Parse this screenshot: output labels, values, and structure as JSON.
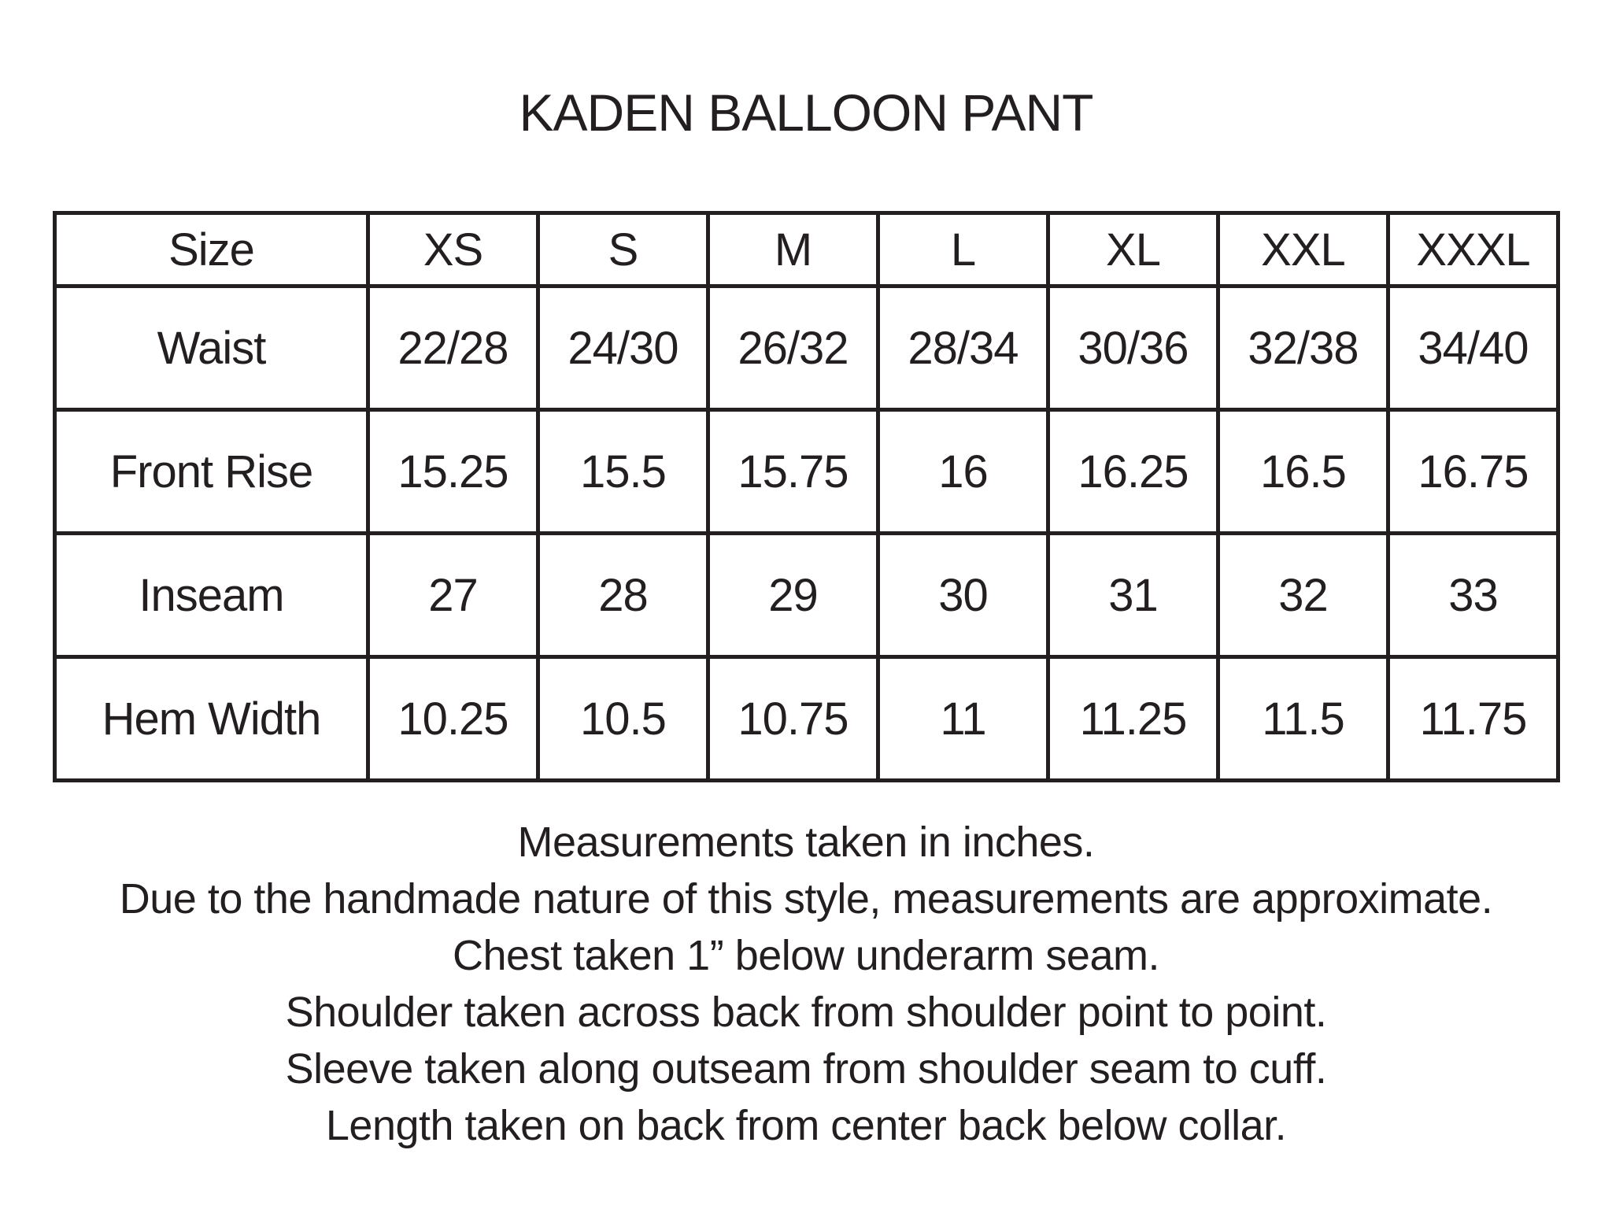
{
  "title": "KADEN BALLOON PANT",
  "table": {
    "header": [
      "Size",
      "XS",
      "S",
      "M",
      "L",
      "XL",
      "XXL",
      "XXXL"
    ],
    "rows": [
      [
        "Waist",
        "22/28",
        "24/30",
        "26/32",
        "28/34",
        "30/36",
        "32/38",
        "34/40"
      ],
      [
        "Front Rise",
        "15.25",
        "15.5",
        "15.75",
        "16",
        "16.25",
        "16.5",
        "16.75"
      ],
      [
        "Inseam",
        "27",
        "28",
        "29",
        "30",
        "31",
        "32",
        "33"
      ],
      [
        "Hem Width",
        "10.25",
        "10.5",
        "10.75",
        "11",
        "11.25",
        "11.5",
        "11.75"
      ]
    ]
  },
  "notes": [
    "Measurements taken in inches.",
    "Due to the handmade nature of this style, measurements are approximate.",
    "Chest taken 1” below underarm seam.",
    "Shoulder taken across back from shoulder point to point.",
    "Sleeve taken along outseam from shoulder seam to cuff.",
    "Length taken on back from center back below collar."
  ]
}
